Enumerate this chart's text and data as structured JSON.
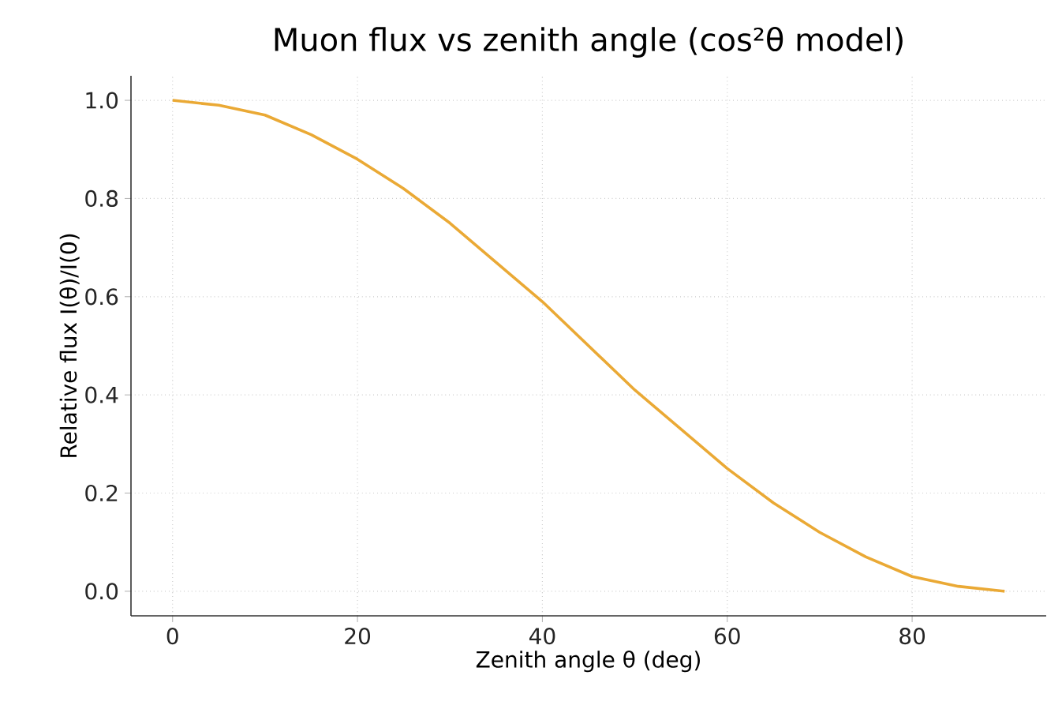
{
  "chart_data": {
    "type": "line",
    "title": "Muon flux vs zenith angle (cos²θ model)",
    "xlabel": "Zenith angle θ (deg)",
    "ylabel": "Relative flux  I(θ)/I(0)",
    "x": [
      0,
      5,
      10,
      15,
      20,
      25,
      30,
      35,
      40,
      45,
      50,
      55,
      60,
      65,
      70,
      75,
      80,
      85,
      90
    ],
    "series": [
      {
        "color": "#eaa935",
        "values": [
          1.0,
          0.99,
          0.97,
          0.93,
          0.88,
          0.82,
          0.75,
          0.67,
          0.59,
          0.5,
          0.41,
          0.33,
          0.25,
          0.18,
          0.12,
          0.07,
          0.03,
          0.01,
          0.0
        ]
      }
    ],
    "xlim": [
      -4.5,
      94.5
    ],
    "ylim": [
      -0.05,
      1.05
    ],
    "xticks": [
      0,
      20,
      40,
      60,
      80
    ],
    "yticks": [
      {
        "value": 0,
        "label": "0.0"
      },
      {
        "value": 0.2,
        "label": "0.2"
      },
      {
        "value": 0.4,
        "label": "0.4"
      },
      {
        "value": 0.6,
        "label": "0.6"
      },
      {
        "value": 0.8,
        "label": "0.8"
      },
      {
        "value": 1.0,
        "label": "1.0"
      }
    ],
    "grid": true,
    "line_style": "solid"
  }
}
